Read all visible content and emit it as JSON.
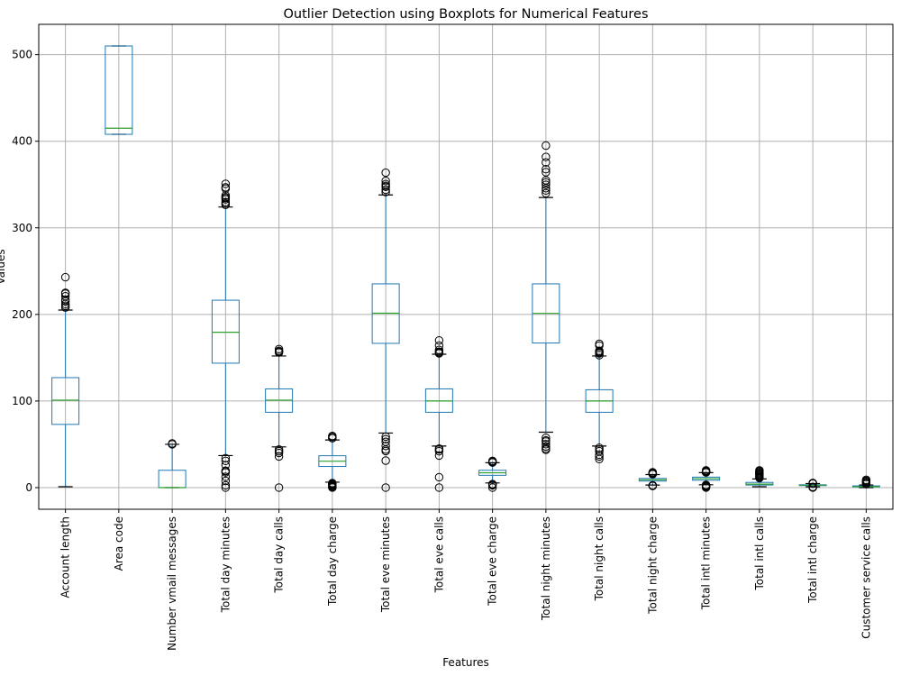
{
  "chart_data": {
    "type": "boxplot",
    "title": "Outlier Detection using Boxplots for Numerical Features",
    "xlabel": "Features",
    "ylabel": "Values",
    "ylim": [
      -25,
      535
    ],
    "yticks": [
      0,
      100,
      200,
      300,
      400,
      500
    ],
    "grid": true,
    "colors": {
      "box": "#1f77b4",
      "median": "#2ca02c",
      "grid": "#b0b0b0",
      "outlier": "#000000"
    },
    "features": [
      {
        "name": "Account length",
        "whisker_low": 1,
        "q1": 73,
        "median": 101,
        "q3": 127,
        "whisker_high": 205,
        "outliers": [
          208,
          210,
          212,
          215,
          217,
          221,
          224,
          225,
          243
        ]
      },
      {
        "name": "Area code",
        "whisker_low": 408,
        "q1": 408,
        "median": 415,
        "q3": 510,
        "whisker_high": 510,
        "outliers": []
      },
      {
        "name": "Number vmail messages",
        "whisker_low": 0,
        "q1": 0,
        "median": 0,
        "q3": 20,
        "whisker_high": 50,
        "outliers": [
          50,
          51
        ]
      },
      {
        "name": "Total day minutes",
        "whisker_low": 37,
        "q1": 143.7,
        "median": 179.4,
        "q3": 216.4,
        "whisker_high": 324,
        "outliers": [
          0,
          2.6,
          7.8,
          12.5,
          17.6,
          18.9,
          19.5,
          25.9,
          30.9,
          34,
          326.5,
          328.1,
          329.8,
          332.9,
          334.3,
          335.5,
          337.4,
          345.3,
          346.8,
          350.8
        ]
      },
      {
        "name": "Total day calls",
        "whisker_low": 47,
        "q1": 87,
        "median": 101,
        "q3": 114,
        "whisker_high": 152,
        "outliers": [
          0,
          36,
          40,
          42,
          44,
          156,
          157,
          158,
          160
        ]
      },
      {
        "name": "Total day charge",
        "whisker_low": 6.3,
        "q1": 24.4,
        "median": 30.5,
        "q3": 36.8,
        "whisker_high": 55,
        "outliers": [
          0,
          0.4,
          1.3,
          2.1,
          3,
          3.3,
          4,
          4.6,
          5.3,
          57,
          57.4,
          58.7,
          59.6
        ]
      },
      {
        "name": "Total eve minutes",
        "whisker_low": 63,
        "q1": 166.6,
        "median": 201.4,
        "q3": 235.3,
        "whisker_high": 338,
        "outliers": [
          0,
          31.2,
          42.2,
          43.9,
          48.1,
          52.9,
          56,
          58.9,
          341.3,
          344,
          347.3,
          348.5,
          350.5,
          354.2,
          363.7
        ]
      },
      {
        "name": "Total eve calls",
        "whisker_low": 48,
        "q1": 87,
        "median": 100,
        "q3": 114,
        "whisker_high": 154,
        "outliers": [
          0,
          12,
          37,
          42,
          44,
          45,
          155,
          156,
          157,
          159,
          164,
          170
        ]
      },
      {
        "name": "Total eve charge",
        "whisker_low": 5.4,
        "q1": 14.2,
        "median": 17.1,
        "q3": 20,
        "whisker_high": 28.7,
        "outliers": [
          0,
          2.7,
          3.6,
          4.1,
          29,
          29.6,
          30.1,
          30.9
        ]
      },
      {
        "name": "Total night minutes",
        "whisker_low": 64,
        "q1": 167,
        "median": 201.2,
        "q3": 235.3,
        "whisker_high": 335,
        "outliers": [
          43.7,
          45,
          47.4,
          50.1,
          53.3,
          54.5,
          57.5,
          340,
          343.2,
          345.8,
          349.7,
          352.5,
          354.9,
          364.3,
          367.7,
          375.5,
          381.9,
          395
        ]
      },
      {
        "name": "Total night calls",
        "whisker_low": 48,
        "q1": 87,
        "median": 100,
        "q3": 113,
        "whisker_high": 152,
        "outliers": [
          33,
          36,
          38,
          42,
          44,
          46,
          153,
          155,
          156,
          157,
          158,
          164,
          166
        ]
      },
      {
        "name": "Total night charge",
        "whisker_low": 2.96,
        "q1": 7.52,
        "median": 9.05,
        "q3": 10.59,
        "whisker_high": 15.1,
        "outliers": [
          1.97,
          2.03,
          2.45,
          2.59,
          15.56,
          15.71,
          15.97,
          16.39,
          16.99,
          17.19,
          17.77
        ]
      },
      {
        "name": "Total intl minutes",
        "whisker_low": 3.3,
        "q1": 8.5,
        "median": 10.3,
        "q3": 12.1,
        "whisker_high": 17.3,
        "outliers": [
          0,
          1.1,
          1.3,
          2,
          2.7,
          3.1,
          17.5,
          17.9,
          18.2,
          18.9,
          19.3,
          20
        ]
      },
      {
        "name": "Total intl calls",
        "whisker_low": 1,
        "q1": 3,
        "median": 4,
        "q3": 6,
        "whisker_high": 10,
        "outliers": [
          11,
          12,
          13,
          14,
          15,
          16,
          17,
          18,
          19,
          20
        ]
      },
      {
        "name": "Total intl charge",
        "whisker_low": 0.89,
        "q1": 2.3,
        "median": 2.78,
        "q3": 3.27,
        "whisker_high": 4.67,
        "outliers": [
          0,
          0.3,
          0.35,
          0.54,
          0.73,
          4.73,
          4.94,
          5.1,
          5.4
        ]
      },
      {
        "name": "Customer service calls",
        "whisker_low": 0,
        "q1": 1,
        "median": 1,
        "q3": 2,
        "whisker_high": 3,
        "outliers": [
          4,
          5,
          6,
          7,
          8,
          9
        ]
      }
    ]
  }
}
